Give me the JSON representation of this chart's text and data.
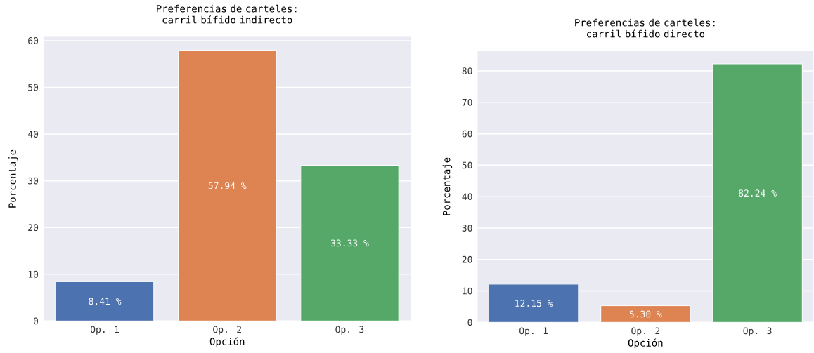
{
  "chart_data": [
    {
      "type": "bar",
      "title": "Preferencias de carteles: carril bífido indirecto",
      "xlabel": "Opción",
      "ylabel": "Porcentaje",
      "categories": [
        "Op. 1",
        "Op. 2",
        "Op. 3"
      ],
      "values": [
        8.41,
        57.94,
        33.33
      ],
      "colors": [
        "#4c72b0",
        "#dd8452",
        "#55a868"
      ],
      "value_labels": [
        "8.41 %",
        "57.94 %",
        "33.33 %"
      ],
      "ylim": [
        0,
        60.8
      ],
      "yticks": [
        0,
        10,
        20,
        30,
        40,
        50,
        60
      ],
      "grid": "y"
    },
    {
      "type": "bar",
      "title": "Preferencias de carteles: carril bífido directo",
      "xlabel": "Opción",
      "ylabel": "Porcentaje",
      "categories": [
        "Op. 1",
        "Op. 2",
        "Op. 3"
      ],
      "values": [
        12.15,
        5.3,
        82.24
      ],
      "colors": [
        "#4c72b0",
        "#dd8452",
        "#55a868"
      ],
      "value_labels": [
        "12.15 %",
        "5.30 %",
        "82.24 %"
      ],
      "ylim": [
        0,
        86.35
      ],
      "yticks": [
        0,
        10,
        20,
        30,
        40,
        50,
        60,
        70,
        80
      ],
      "grid": "y"
    }
  ]
}
